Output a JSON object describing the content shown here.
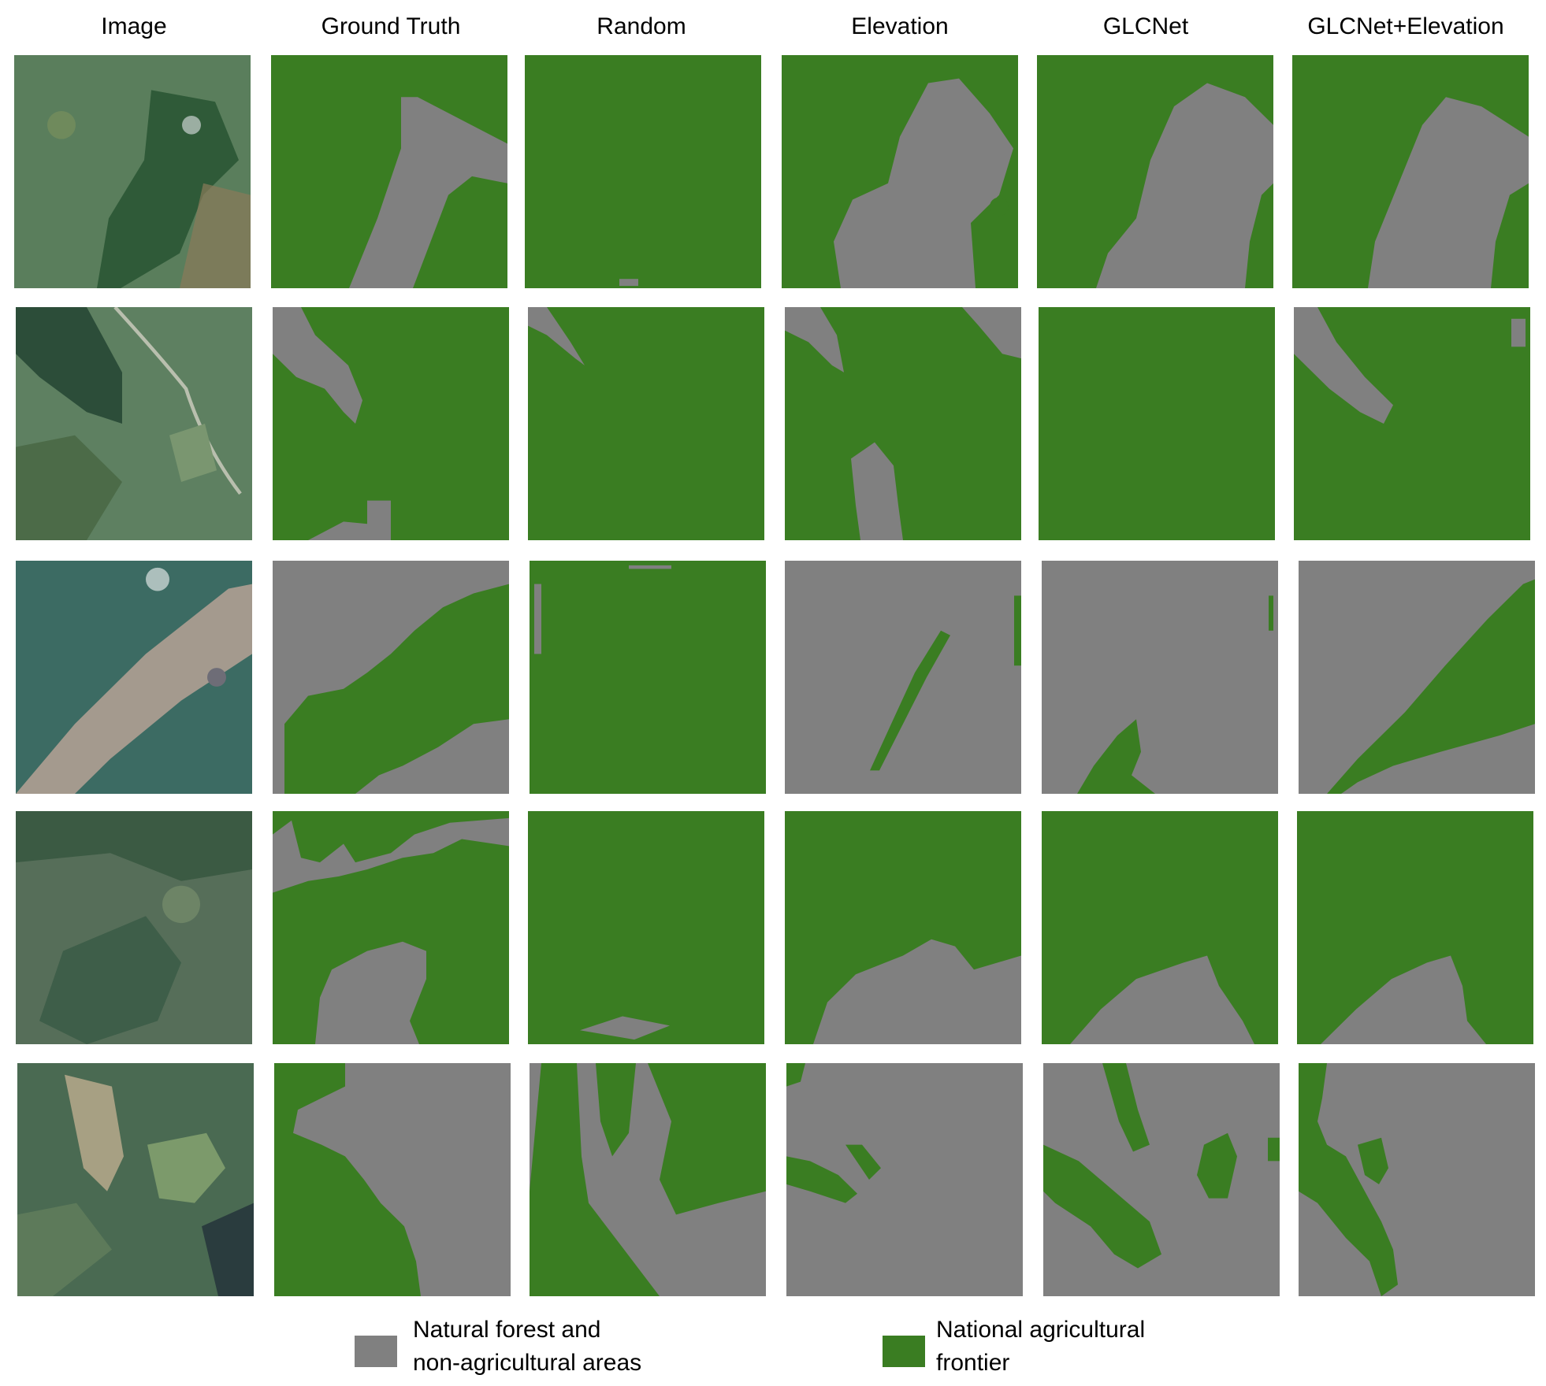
{
  "columns": [
    "Image",
    "Ground Truth",
    "Random",
    "Elevation",
    "GLCNet",
    "GLCNet+Elevation"
  ],
  "legend": [
    {
      "label_line1": "Natural forest and",
      "label_line2": "non-agricultural areas",
      "color": "#808080"
    },
    {
      "label_line1": "National agricultural",
      "label_line2": "frontier",
      "color": "#3a7d22"
    }
  ],
  "colors": {
    "green": "#3a7d22",
    "gray": "#808080"
  }
}
